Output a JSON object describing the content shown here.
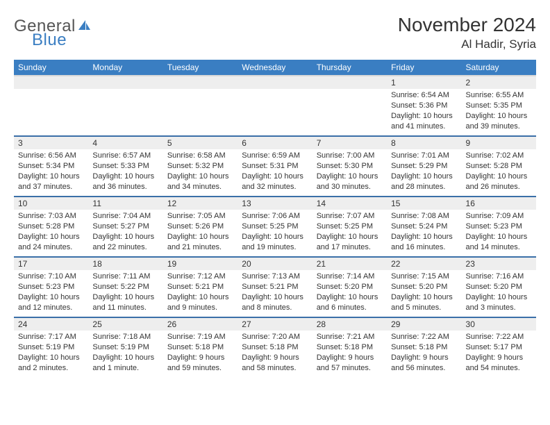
{
  "brand": {
    "text1": "General",
    "text2": "Blue"
  },
  "title": "November 2024",
  "location": "Al Hadir, Syria",
  "weekdays": [
    "Sunday",
    "Monday",
    "Tuesday",
    "Wednesday",
    "Thursday",
    "Friday",
    "Saturday"
  ],
  "colors": {
    "header_bg": "#3a7ec2",
    "header_text": "#ffffff",
    "row_divider": "#3a6fa8",
    "daynum_bg": "#eeeeee",
    "body_text": "#333333",
    "brand_gray": "#555555",
    "brand_blue": "#3a7ec2",
    "page_bg": "#ffffff"
  },
  "typography": {
    "month_title_size": 28,
    "location_size": 17,
    "weekday_size": 12,
    "daynum_size": 12,
    "cell_size": 11
  },
  "weeks": [
    [
      null,
      null,
      null,
      null,
      null,
      {
        "n": "1",
        "sunrise": "6:54 AM",
        "sunset": "5:36 PM",
        "daylight": "10 hours and 41 minutes."
      },
      {
        "n": "2",
        "sunrise": "6:55 AM",
        "sunset": "5:35 PM",
        "daylight": "10 hours and 39 minutes."
      }
    ],
    [
      {
        "n": "3",
        "sunrise": "6:56 AM",
        "sunset": "5:34 PM",
        "daylight": "10 hours and 37 minutes."
      },
      {
        "n": "4",
        "sunrise": "6:57 AM",
        "sunset": "5:33 PM",
        "daylight": "10 hours and 36 minutes."
      },
      {
        "n": "5",
        "sunrise": "6:58 AM",
        "sunset": "5:32 PM",
        "daylight": "10 hours and 34 minutes."
      },
      {
        "n": "6",
        "sunrise": "6:59 AM",
        "sunset": "5:31 PM",
        "daylight": "10 hours and 32 minutes."
      },
      {
        "n": "7",
        "sunrise": "7:00 AM",
        "sunset": "5:30 PM",
        "daylight": "10 hours and 30 minutes."
      },
      {
        "n": "8",
        "sunrise": "7:01 AM",
        "sunset": "5:29 PM",
        "daylight": "10 hours and 28 minutes."
      },
      {
        "n": "9",
        "sunrise": "7:02 AM",
        "sunset": "5:28 PM",
        "daylight": "10 hours and 26 minutes."
      }
    ],
    [
      {
        "n": "10",
        "sunrise": "7:03 AM",
        "sunset": "5:28 PM",
        "daylight": "10 hours and 24 minutes."
      },
      {
        "n": "11",
        "sunrise": "7:04 AM",
        "sunset": "5:27 PM",
        "daylight": "10 hours and 22 minutes."
      },
      {
        "n": "12",
        "sunrise": "7:05 AM",
        "sunset": "5:26 PM",
        "daylight": "10 hours and 21 minutes."
      },
      {
        "n": "13",
        "sunrise": "7:06 AM",
        "sunset": "5:25 PM",
        "daylight": "10 hours and 19 minutes."
      },
      {
        "n": "14",
        "sunrise": "7:07 AM",
        "sunset": "5:25 PM",
        "daylight": "10 hours and 17 minutes."
      },
      {
        "n": "15",
        "sunrise": "7:08 AM",
        "sunset": "5:24 PM",
        "daylight": "10 hours and 16 minutes."
      },
      {
        "n": "16",
        "sunrise": "7:09 AM",
        "sunset": "5:23 PM",
        "daylight": "10 hours and 14 minutes."
      }
    ],
    [
      {
        "n": "17",
        "sunrise": "7:10 AM",
        "sunset": "5:23 PM",
        "daylight": "10 hours and 12 minutes."
      },
      {
        "n": "18",
        "sunrise": "7:11 AM",
        "sunset": "5:22 PM",
        "daylight": "10 hours and 11 minutes."
      },
      {
        "n": "19",
        "sunrise": "7:12 AM",
        "sunset": "5:21 PM",
        "daylight": "10 hours and 9 minutes."
      },
      {
        "n": "20",
        "sunrise": "7:13 AM",
        "sunset": "5:21 PM",
        "daylight": "10 hours and 8 minutes."
      },
      {
        "n": "21",
        "sunrise": "7:14 AM",
        "sunset": "5:20 PM",
        "daylight": "10 hours and 6 minutes."
      },
      {
        "n": "22",
        "sunrise": "7:15 AM",
        "sunset": "5:20 PM",
        "daylight": "10 hours and 5 minutes."
      },
      {
        "n": "23",
        "sunrise": "7:16 AM",
        "sunset": "5:20 PM",
        "daylight": "10 hours and 3 minutes."
      }
    ],
    [
      {
        "n": "24",
        "sunrise": "7:17 AM",
        "sunset": "5:19 PM",
        "daylight": "10 hours and 2 minutes."
      },
      {
        "n": "25",
        "sunrise": "7:18 AM",
        "sunset": "5:19 PM",
        "daylight": "10 hours and 1 minute."
      },
      {
        "n": "26",
        "sunrise": "7:19 AM",
        "sunset": "5:18 PM",
        "daylight": "9 hours and 59 minutes."
      },
      {
        "n": "27",
        "sunrise": "7:20 AM",
        "sunset": "5:18 PM",
        "daylight": "9 hours and 58 minutes."
      },
      {
        "n": "28",
        "sunrise": "7:21 AM",
        "sunset": "5:18 PM",
        "daylight": "9 hours and 57 minutes."
      },
      {
        "n": "29",
        "sunrise": "7:22 AM",
        "sunset": "5:18 PM",
        "daylight": "9 hours and 56 minutes."
      },
      {
        "n": "30",
        "sunrise": "7:22 AM",
        "sunset": "5:17 PM",
        "daylight": "9 hours and 54 minutes."
      }
    ]
  ]
}
